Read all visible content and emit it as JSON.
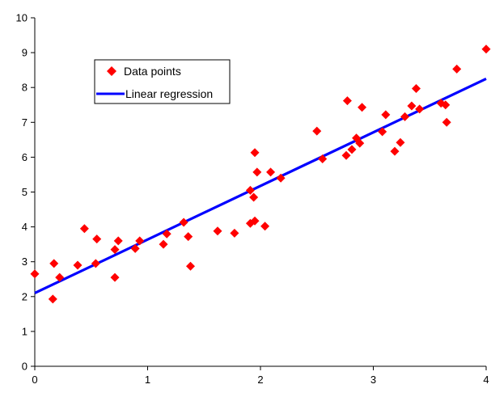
{
  "chart_data": {
    "type": "scatter",
    "title": "",
    "xlabel": "",
    "ylabel": "",
    "xlim": [
      0,
      4
    ],
    "ylim": [
      0,
      10
    ],
    "xticks": [
      0,
      1,
      2,
      3,
      4
    ],
    "yticks": [
      0,
      1,
      2,
      3,
      4,
      5,
      6,
      7,
      8,
      9,
      10
    ],
    "grid": false,
    "legend_position": "top-left",
    "series": [
      {
        "name": "Data points",
        "kind": "scatter",
        "color": "#ff0000",
        "marker": "diamond",
        "points": [
          [
            0.0,
            2.65
          ],
          [
            0.16,
            1.93
          ],
          [
            0.17,
            2.95
          ],
          [
            0.22,
            2.55
          ],
          [
            0.38,
            2.9
          ],
          [
            0.44,
            3.95
          ],
          [
            0.54,
            2.95
          ],
          [
            0.55,
            3.65
          ],
          [
            0.71,
            2.55
          ],
          [
            0.71,
            3.35
          ],
          [
            0.74,
            3.6
          ],
          [
            0.89,
            3.38
          ],
          [
            0.93,
            3.6
          ],
          [
            1.14,
            3.5
          ],
          [
            1.17,
            3.8
          ],
          [
            1.32,
            4.13
          ],
          [
            1.36,
            3.72
          ],
          [
            1.38,
            2.87
          ],
          [
            1.62,
            3.88
          ],
          [
            1.77,
            3.82
          ],
          [
            1.91,
            4.1
          ],
          [
            1.91,
            5.05
          ],
          [
            1.94,
            4.85
          ],
          [
            1.95,
            4.17
          ],
          [
            1.95,
            6.13
          ],
          [
            1.97,
            5.57
          ],
          [
            2.04,
            4.02
          ],
          [
            2.09,
            5.57
          ],
          [
            2.18,
            5.4
          ],
          [
            2.5,
            6.75
          ],
          [
            2.55,
            5.95
          ],
          [
            2.76,
            6.05
          ],
          [
            2.77,
            7.62
          ],
          [
            2.81,
            6.22
          ],
          [
            2.85,
            6.55
          ],
          [
            2.88,
            6.4
          ],
          [
            2.9,
            7.43
          ],
          [
            3.08,
            6.73
          ],
          [
            3.11,
            7.22
          ],
          [
            3.19,
            6.17
          ],
          [
            3.24,
            6.42
          ],
          [
            3.28,
            7.16
          ],
          [
            3.34,
            7.47
          ],
          [
            3.38,
            7.97
          ],
          [
            3.41,
            7.38
          ],
          [
            3.6,
            7.55
          ],
          [
            3.64,
            7.5
          ],
          [
            3.65,
            7.0
          ],
          [
            3.74,
            8.53
          ],
          [
            4.0,
            9.1
          ]
        ]
      },
      {
        "name": "Linear regression",
        "kind": "line",
        "color": "#0000ff",
        "points": [
          [
            0.0,
            2.1
          ],
          [
            4.0,
            8.25
          ]
        ]
      }
    ]
  }
}
